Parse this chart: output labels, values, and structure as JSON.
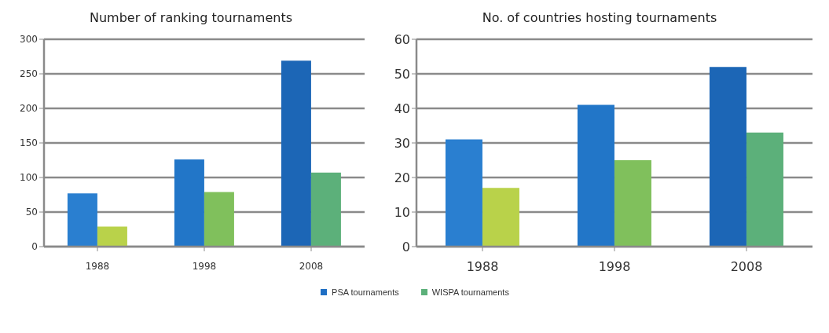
{
  "chart_data": [
    {
      "type": "bar",
      "title": "Number of ranking tournaments",
      "categories": [
        "1988",
        "1998",
        "2008"
      ],
      "series": [
        {
          "name": "PSA tournaments",
          "color": "#1f6fc4",
          "colors": [
            "#2a7fd0",
            "#2276c8",
            "#1c66b6"
          ],
          "values": [
            77,
            126,
            269
          ]
        },
        {
          "name": "WISPA tournaments",
          "color": "#5cb07a",
          "colors": [
            "#b9d24a",
            "#80c05c",
            "#5cb07a"
          ],
          "values": [
            29,
            79,
            107
          ]
        }
      ],
      "ylim": [
        0,
        300
      ],
      "yticks": [
        0,
        50,
        100,
        150,
        200,
        250,
        300
      ],
      "grid": "y",
      "legend": "bottom"
    },
    {
      "type": "bar",
      "title": "No. of countries hosting tournaments",
      "categories": [
        "1988",
        "1998",
        "2008"
      ],
      "series": [
        {
          "color": "#1f6fc4",
          "colors": [
            "#2a7fd0",
            "#2276c8",
            "#1c66b6"
          ],
          "values": [
            31,
            41,
            52
          ]
        },
        {
          "color": "#5cb07a",
          "colors": [
            "#b9d24a",
            "#80c05c",
            "#5cb07a"
          ],
          "values": [
            17,
            25,
            33
          ]
        }
      ],
      "ylim": [
        0,
        60
      ],
      "yticks": [
        0,
        10,
        20,
        30,
        40,
        50,
        60
      ],
      "grid": "y"
    }
  ]
}
